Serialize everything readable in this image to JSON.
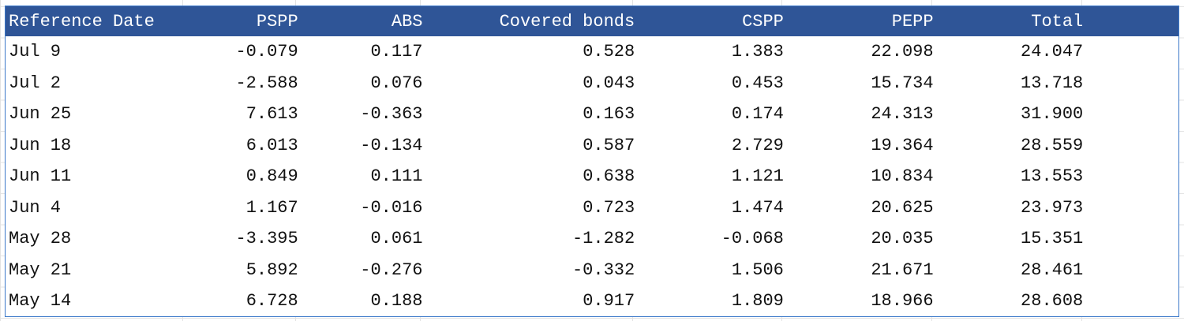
{
  "table": {
    "headers": {
      "date": "Reference Date",
      "pspp": "PSPP",
      "abs": "ABS",
      "covered": "Covered bonds",
      "cspp": "CSPP",
      "pepp": "PEPP",
      "total": "Total"
    },
    "rows": [
      {
        "date": "Jul 9",
        "pspp": "-0.079",
        "abs": "0.117",
        "covered": "0.528",
        "cspp": "1.383",
        "pepp": "22.098",
        "total": "24.047"
      },
      {
        "date": "Jul 2",
        "pspp": "-2.588",
        "abs": "0.076",
        "covered": "0.043",
        "cspp": "0.453",
        "pepp": "15.734",
        "total": "13.718"
      },
      {
        "date": "Jun 25",
        "pspp": "7.613",
        "abs": "-0.363",
        "covered": "0.163",
        "cspp": "0.174",
        "pepp": "24.313",
        "total": "31.900"
      },
      {
        "date": "Jun 18",
        "pspp": "6.013",
        "abs": "-0.134",
        "covered": "0.587",
        "cspp": "2.729",
        "pepp": "19.364",
        "total": "28.559"
      },
      {
        "date": "Jun 11",
        "pspp": "0.849",
        "abs": "0.111",
        "covered": "0.638",
        "cspp": "1.121",
        "pepp": "10.834",
        "total": "13.553"
      },
      {
        "date": "Jun 4",
        "pspp": "1.167",
        "abs": "-0.016",
        "covered": "0.723",
        "cspp": "1.474",
        "pepp": "20.625",
        "total": "23.973"
      },
      {
        "date": "May 28",
        "pspp": "-3.395",
        "abs": "0.061",
        "covered": "-1.282",
        "cspp": "-0.068",
        "pepp": "20.035",
        "total": "15.351"
      },
      {
        "date": "May 21",
        "pspp": "5.892",
        "abs": "-0.276",
        "covered": "-0.332",
        "cspp": "1.506",
        "pepp": "21.671",
        "total": "28.461"
      },
      {
        "date": "May 14",
        "pspp": "6.728",
        "abs": "0.188",
        "covered": "0.917",
        "cspp": "1.809",
        "pepp": "18.966",
        "total": "28.608"
      }
    ]
  },
  "colors": {
    "header_bg": "#2f5597",
    "header_text": "#ffffff",
    "frame_border": "#3b78c9"
  }
}
